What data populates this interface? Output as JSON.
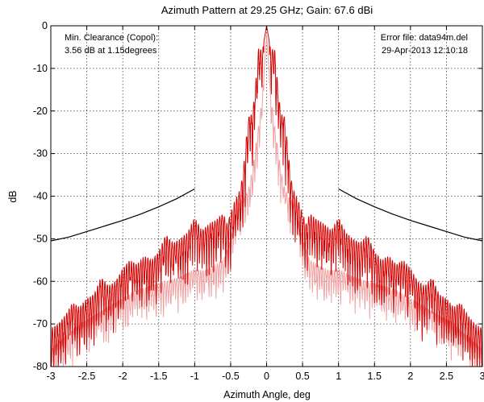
{
  "chart_data": {
    "type": "line",
    "title": "Azimuth Pattern at 29.25 GHz; Gain:  67.6 dBi",
    "xlabel": "Azimuth Angle, deg",
    "ylabel": "dB",
    "xlim": [
      -3,
      3
    ],
    "ylim": [
      -80,
      0
    ],
    "x_ticks": [
      -3,
      -2.5,
      -2,
      -1.5,
      -1,
      -0.5,
      0,
      0.5,
      1,
      1.5,
      2,
      2.5,
      3
    ],
    "x_tick_labels": [
      "-3",
      "-2.5",
      "-2",
      "-1.5",
      "-1",
      "-0.5",
      "0",
      "0.5",
      "1",
      "1.5",
      "2",
      "2.5",
      "3"
    ],
    "y_ticks": [
      0,
      -10,
      -20,
      -30,
      -40,
      -50,
      -60,
      -70,
      -80
    ],
    "y_tick_labels": [
      "0",
      "-10",
      "-20",
      "-30",
      "-40",
      "-50",
      "-60",
      "-70",
      "-80"
    ],
    "grid": true,
    "annotations": {
      "left_line1": "Min. Clearance (Copol):",
      "left_line2": "3.56 dB at 1.15degrees",
      "right_line1": "Error file: data94m.del",
      "right_line2": "29-Apr-2013 12:10:18"
    },
    "series": [
      {
        "color": "#000000",
        "segments": [
          {
            "x": [
              -3.0,
              -2.75,
              -2.5,
              -2.25,
              -2.0,
              -1.75,
              -1.5,
              -1.25,
              -1.0
            ],
            "y": [
              -50.5,
              -49.6,
              -48.3,
              -47.0,
              -45.7,
              -44.2,
              -42.5,
              -40.6,
              -38.3
            ]
          },
          {
            "x": [
              1.0,
              1.25,
              1.5,
              1.75,
              2.0,
              2.25,
              2.5,
              2.75,
              3.0
            ],
            "y": [
              -38.3,
              -40.6,
              -42.5,
              -44.2,
              -45.7,
              -47.0,
              -48.3,
              -49.6,
              -50.5
            ]
          }
        ]
      },
      {
        "color": "#d40000",
        "peaks": [
          [
            0.0,
            0.0
          ],
          [
            0.06,
            -6.0
          ],
          [
            0.11,
            -5.0
          ],
          [
            0.16,
            -15.0
          ],
          [
            0.2,
            -21.0
          ],
          [
            0.24,
            -20.5
          ],
          [
            0.28,
            -26.0
          ],
          [
            0.32,
            -33.0
          ],
          [
            0.36,
            -38.0
          ],
          [
            0.4,
            -39.5
          ],
          [
            0.45,
            -41.5
          ],
          [
            0.5,
            -44.0
          ],
          [
            0.55,
            -46.5
          ],
          [
            0.6,
            -44.0
          ],
          [
            0.7,
            -45.5
          ],
          [
            0.8,
            -46.5
          ],
          [
            0.9,
            -48.0
          ],
          [
            1.0,
            -45.0
          ],
          [
            1.1,
            -48.5
          ],
          [
            1.2,
            -50.0
          ],
          [
            1.3,
            -51.0
          ],
          [
            1.4,
            -49.0
          ],
          [
            1.5,
            -53.0
          ],
          [
            1.6,
            -55.0
          ],
          [
            1.7,
            -54.0
          ],
          [
            1.8,
            -56.0
          ],
          [
            1.9,
            -55.0
          ],
          [
            2.0,
            -57.0
          ],
          [
            2.1,
            -60.0
          ],
          [
            2.2,
            -61.0
          ],
          [
            2.3,
            -59.0
          ],
          [
            2.4,
            -63.0
          ],
          [
            2.5,
            -64.0
          ],
          [
            2.6,
            -66.0
          ],
          [
            2.7,
            -65.0
          ],
          [
            2.8,
            -68.0
          ],
          [
            2.9,
            -70.0
          ],
          [
            3.0,
            -71.0
          ]
        ]
      },
      {
        "color": "#f0a0a0",
        "peaks": [
          [
            0.0,
            -2.0
          ],
          [
            0.05,
            -15.0
          ],
          [
            0.1,
            -22.0
          ],
          [
            0.15,
            -28.0
          ],
          [
            0.2,
            -34.0
          ],
          [
            0.25,
            -38.0
          ],
          [
            0.3,
            -40.0
          ],
          [
            0.4,
            -42.0
          ],
          [
            0.5,
            -50.0
          ],
          [
            0.6,
            -55.0
          ],
          [
            0.7,
            -56.0
          ],
          [
            0.8,
            -57.0
          ],
          [
            0.9,
            -57.5
          ],
          [
            1.0,
            -57.0
          ],
          [
            1.2,
            -59.0
          ],
          [
            1.4,
            -60.0
          ],
          [
            1.6,
            -61.0
          ],
          [
            1.8,
            -62.0
          ],
          [
            2.0,
            -64.0
          ],
          [
            2.2,
            -66.0
          ],
          [
            2.4,
            -68.0
          ],
          [
            2.6,
            -70.0
          ],
          [
            2.8,
            -73.0
          ],
          [
            3.0,
            -76.0
          ]
        ]
      }
    ]
  }
}
